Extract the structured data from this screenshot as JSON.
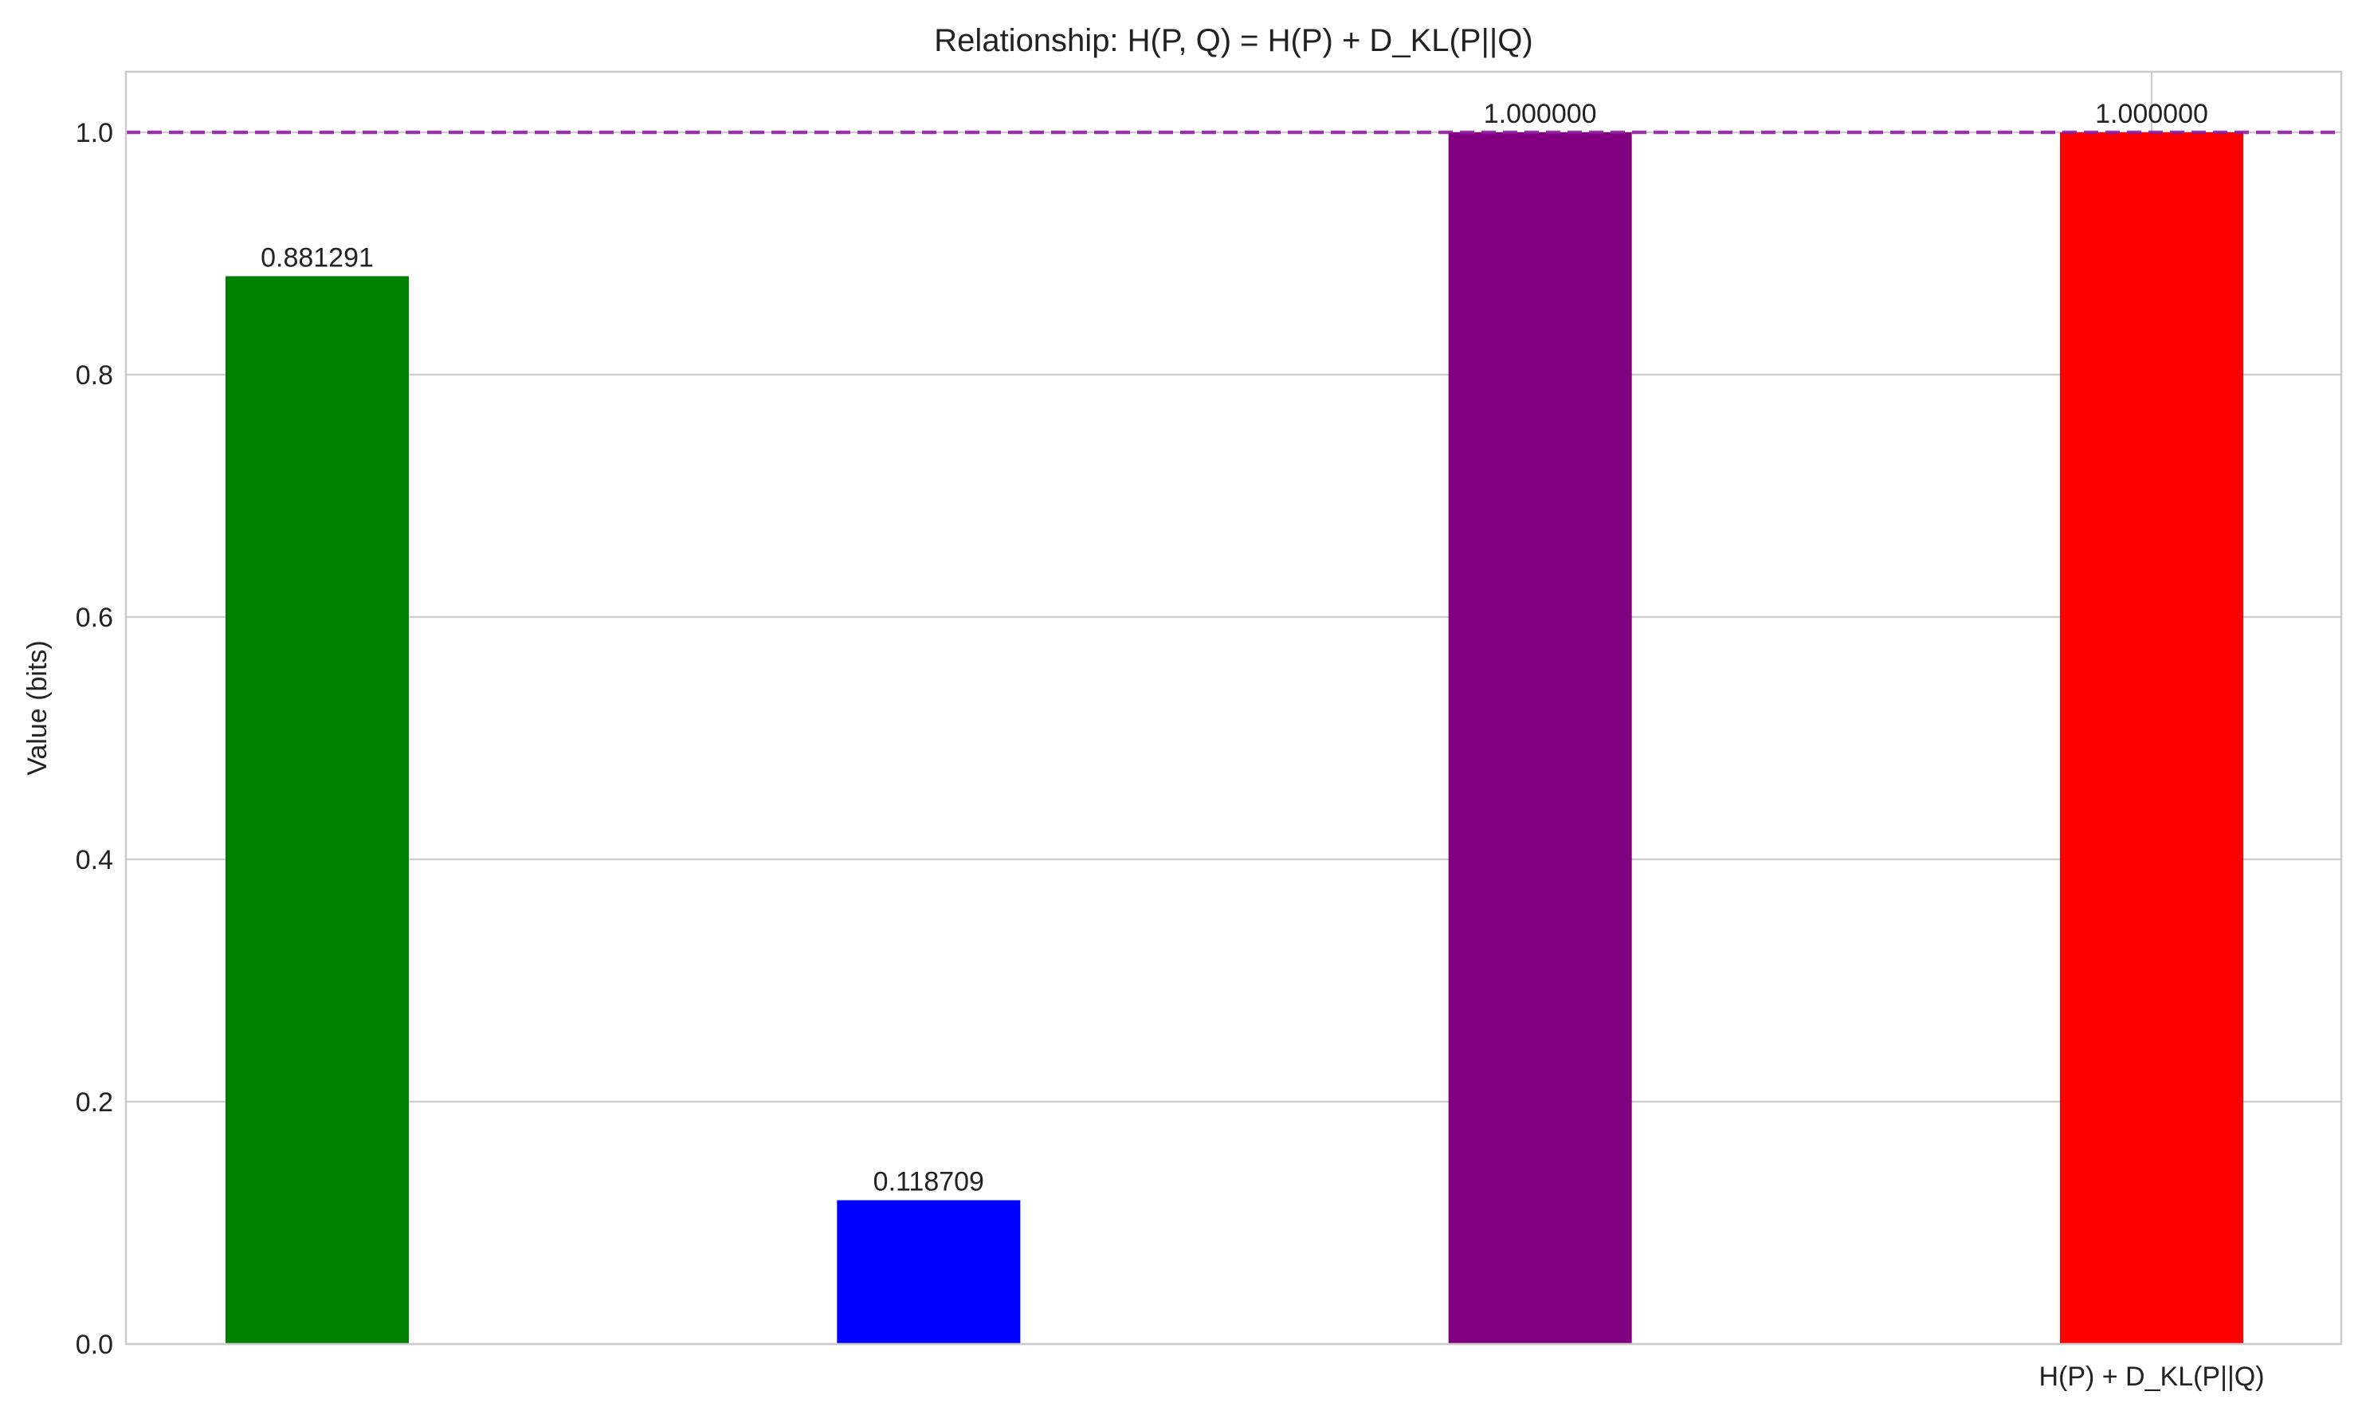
{
  "chart_data": {
    "type": "bar",
    "title": "Relationship: H(P, Q) = H(P) + D_KL(P||Q)",
    "xlabel": "",
    "ylabel": "Value (bits)",
    "ylim": [
      0,
      1.05
    ],
    "yticks": [
      "0.0",
      "0.2",
      "0.4",
      "0.6",
      "0.8",
      "1.0"
    ],
    "grid": true,
    "legend": "none",
    "categories": [
      "",
      "",
      "",
      "H(P) + D_KL(P||Q)"
    ],
    "values": [
      0.881291,
      0.118709,
      1.0,
      1.0
    ],
    "data_labels": [
      "0.881291",
      "0.118709",
      "1.000000",
      "1.000000"
    ],
    "colors": [
      "#008000",
      "#0000ff",
      "#800080",
      "#ff0000"
    ],
    "reference_line": {
      "y": 1.0,
      "style": "dashed",
      "color": "#8b1a9e"
    }
  }
}
